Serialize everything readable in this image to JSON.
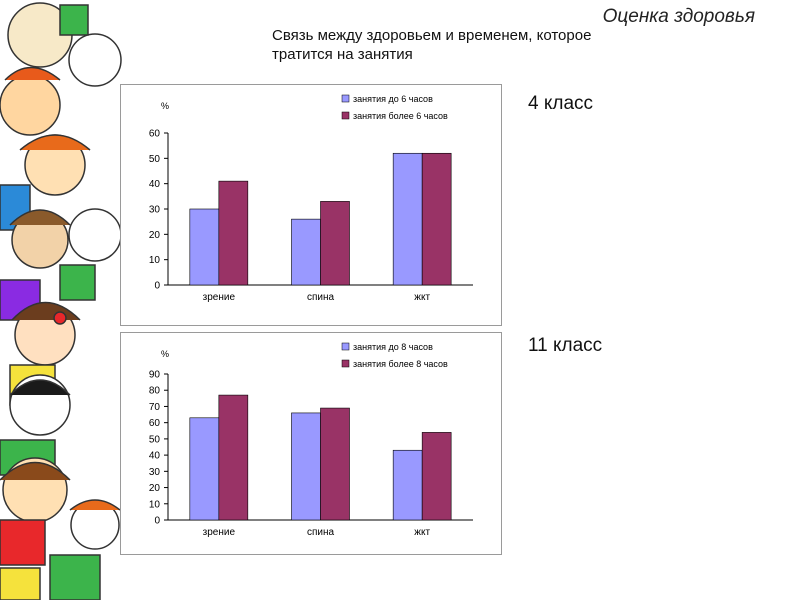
{
  "page": {
    "header_title": "Оценка здоровья",
    "subtitle_line1": "Связь между здоровьем и временем, которое",
    "subtitle_line2": "тратится на занятия"
  },
  "grades": [
    "4 класс",
    "11 класс"
  ],
  "colors": {
    "series1": "#9999ff",
    "series2": "#993366"
  },
  "chart_data": [
    {
      "type": "bar",
      "ylabel": "%",
      "categories": [
        "зрение",
        "спина",
        "жкт"
      ],
      "series": [
        {
          "name": "занятия до 6 часов",
          "values": [
            30,
            26,
            52
          ]
        },
        {
          "name": "занятия более 6 часов",
          "values": [
            41,
            33,
            52
          ]
        }
      ],
      "yticks": [
        0,
        10,
        20,
        30,
        40,
        50,
        60
      ],
      "ylim": [
        0,
        60
      ],
      "grid": false,
      "legend": "top-right"
    },
    {
      "type": "bar",
      "ylabel": "%",
      "categories": [
        "зрение",
        "спина",
        "жкт"
      ],
      "series": [
        {
          "name": "занятия до 8 часов",
          "values": [
            63,
            66,
            43
          ]
        },
        {
          "name": "занятия более 8 часов",
          "values": [
            77,
            69,
            54
          ]
        }
      ],
      "yticks": [
        0,
        10,
        20,
        30,
        40,
        50,
        60,
        70,
        80,
        90
      ],
      "ylim": [
        0,
        90
      ],
      "grid": false,
      "legend": "top-right"
    }
  ]
}
